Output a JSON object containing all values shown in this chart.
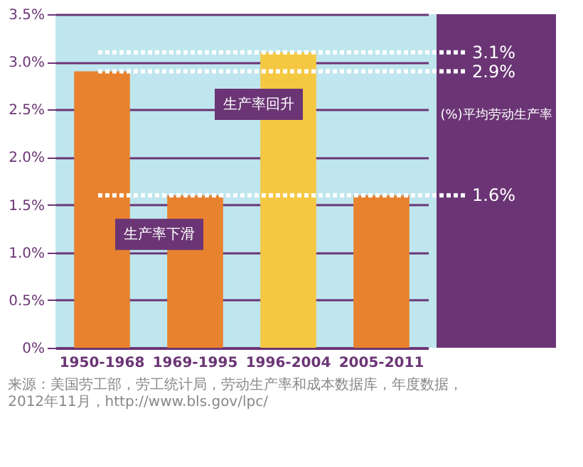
{
  "chart_data": {
    "type": "bar",
    "categories": [
      "1950-1968",
      "1969-1995",
      "1996-2004",
      "2005-2011"
    ],
    "values": [
      2.9,
      1.6,
      3.1,
      1.6
    ],
    "colors": [
      "#e8822e",
      "#e8822e",
      "#f5c842",
      "#e8822e"
    ],
    "ylabel": "(%)平均劳动生产率",
    "ylim": [
      0,
      3.5
    ],
    "yticks": [
      {
        "value": 0,
        "label": "0%"
      },
      {
        "value": 0.5,
        "label": "0.5%"
      },
      {
        "value": 1.0,
        "label": "1.0%"
      },
      {
        "value": 1.5,
        "label": "1.5%"
      },
      {
        "value": 2.0,
        "label": "2.0%"
      },
      {
        "value": 2.5,
        "label": "2.5%"
      },
      {
        "value": 3.0,
        "label": "3.0%"
      },
      {
        "value": 3.5,
        "label": "3.5%"
      }
    ],
    "grid": "y",
    "ref_lines": [
      {
        "axis": "y",
        "value": 3.1,
        "label": "3.1%",
        "color": "#ffffff",
        "line_style": "dotted"
      },
      {
        "axis": "y",
        "value": 2.9,
        "label": "2.9%",
        "color": "#ffffff",
        "line_style": "dotted"
      },
      {
        "axis": "y",
        "value": 1.6,
        "label": "1.6%",
        "color": "#ffffff",
        "line_style": "dotted"
      }
    ],
    "annotations": [
      "生产率回升",
      "生产率下滑",
      "来源：美国劳工部，劳工统计局，劳动生产率和成本数据库，年度数据，2012年11月，http://www.bls.gov/lpc/"
    ]
  }
}
